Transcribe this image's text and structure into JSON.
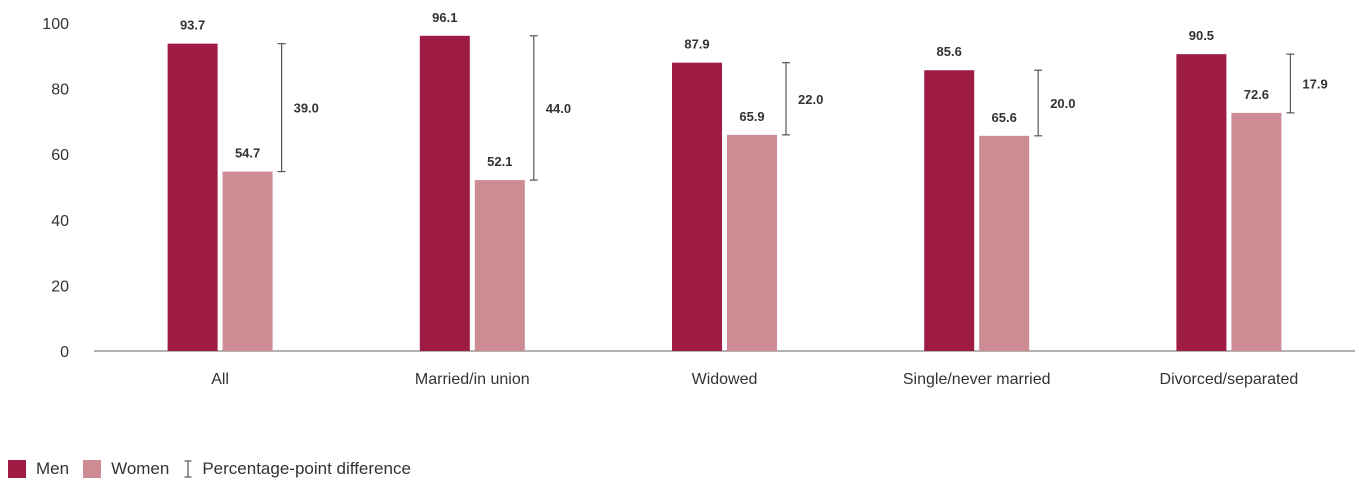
{
  "chart_data": {
    "type": "bar",
    "categories": [
      "All",
      "Married/in union",
      "Widowed",
      "Single/never married",
      "Divorced/separated"
    ],
    "series": [
      {
        "name": "Men",
        "color": "#9e1c43",
        "values": [
          93.7,
          96.1,
          87.9,
          85.6,
          90.5
        ]
      },
      {
        "name": "Women",
        "color": "#cd8b93",
        "values": [
          54.7,
          52.1,
          65.9,
          65.6,
          72.6
        ]
      }
    ],
    "differences": [
      39.0,
      44.0,
      22.0,
      20.0,
      17.9
    ],
    "difference_label": "Percentage-point difference",
    "ylim": [
      0,
      100
    ],
    "yticks": [
      0,
      20,
      40,
      60,
      80,
      100
    ],
    "grid": false,
    "legend_position": "bottom-left"
  }
}
